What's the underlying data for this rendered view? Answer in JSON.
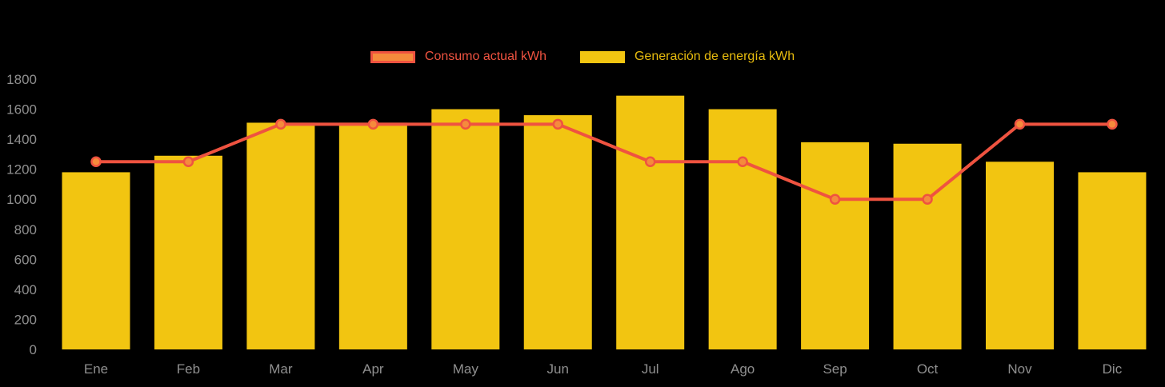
{
  "chart_data": {
    "type": "bar",
    "subtype": "bar-and-line-combo",
    "title": "",
    "categories": [
      "Ene",
      "Feb",
      "Mar",
      "Apr",
      "May",
      "Jun",
      "Jul",
      "Ago",
      "Sep",
      "Oct",
      "Nov",
      "Dic"
    ],
    "series": [
      {
        "name": "Consumo actual kWh",
        "type": "line",
        "color": "#EF5340",
        "marker_fill": "#F58B3C",
        "values": [
          1250,
          1250,
          1500,
          1500,
          1500,
          1500,
          1250,
          1250,
          1000,
          1000,
          1500,
          1500
        ]
      },
      {
        "name": "Generación de energía kWh",
        "type": "bar",
        "color": "#F2C511",
        "values": [
          1180,
          1290,
          1510,
          1510,
          1600,
          1560,
          1690,
          1600,
          1380,
          1370,
          1250,
          1180
        ]
      }
    ],
    "xlabel": "",
    "ylabel": "",
    "ylim": [
      0,
      1800
    ],
    "yticks": [
      0,
      200,
      400,
      600,
      800,
      1000,
      1200,
      1400,
      1600,
      1800
    ],
    "grid": false,
    "legend_position": "top-center",
    "background": "#000000",
    "axis_text_color": "#8F8F8F"
  }
}
